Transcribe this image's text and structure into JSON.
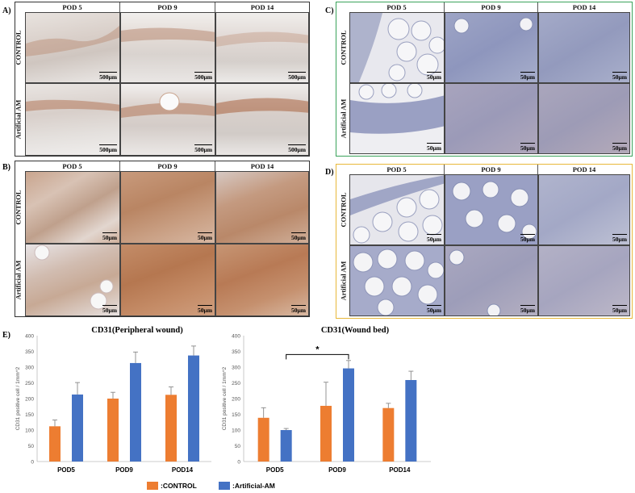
{
  "panels": {
    "A": {
      "label": "A)",
      "headers": [
        "POD 5",
        "POD 9",
        "POD 14"
      ],
      "rows": [
        "CONTROL",
        "Artificial AM"
      ],
      "scale": "500μm"
    },
    "B": {
      "label": "B)",
      "headers": [
        "POD 5",
        "POD 9",
        "POD 14"
      ],
      "rows": [
        "CONTROL",
        "Artificial AM"
      ],
      "scale": "50μm"
    },
    "C": {
      "label": "C)",
      "headers": [
        "POD 5",
        "POD 9",
        "POD 14"
      ],
      "rows": [
        "CONTROL",
        "Artificial AM"
      ],
      "scale": "50μm",
      "frame_color": "#3aa35b"
    },
    "D": {
      "label": "D)",
      "headers": [
        "POD 5",
        "POD 9",
        "POD 14"
      ],
      "rows": [
        "CONTROL",
        "Artificial AM"
      ],
      "scale": "50μm",
      "frame_color": "#e8b83a"
    },
    "E": {
      "label": "E)"
    }
  },
  "chart_data": [
    {
      "type": "bar",
      "title": "CD31(Peripheral wound)",
      "ylabel": "CD31 positive cell / 1mm^2",
      "categories": [
        "POD5",
        "POD9",
        "POD14"
      ],
      "ylim": [
        0,
        400
      ],
      "yticks": [
        "0",
        "50",
        "100",
        "150",
        "200",
        "250",
        "300",
        "350",
        "400"
      ],
      "series": [
        {
          "name": ":CONTROL",
          "color": "#ed7d31",
          "values": [
            112,
            200,
            212
          ],
          "errors": [
            20,
            20,
            25
          ]
        },
        {
          "name": ":Artificial-AM",
          "color": "#4472c4",
          "values": [
            213,
            313,
            337
          ],
          "errors": [
            38,
            35,
            30
          ]
        }
      ]
    },
    {
      "type": "bar",
      "title": "CD31(Wound bed)",
      "ylabel": "CD31 positive cell / 1mm^2",
      "categories": [
        "POD5",
        "POD9",
        "POD14"
      ],
      "ylim": [
        0,
        400
      ],
      "yticks": [
        "0",
        "50",
        "100",
        "150",
        "200",
        "250",
        "300",
        "350",
        "400"
      ],
      "series": [
        {
          "name": ":CONTROL",
          "color": "#ed7d31",
          "values": [
            139,
            177,
            170
          ],
          "errors": [
            32,
            75,
            15
          ]
        },
        {
          "name": ":Artificial-AM",
          "color": "#4472c4",
          "values": [
            100,
            296,
            259
          ],
          "errors": [
            5,
            25,
            28
          ]
        }
      ],
      "annotation": "*"
    }
  ],
  "legend": [
    {
      "label": ":CONTROL",
      "color": "#ed7d31"
    },
    {
      "label": ":Artificial-AM",
      "color": "#4472c4"
    }
  ]
}
